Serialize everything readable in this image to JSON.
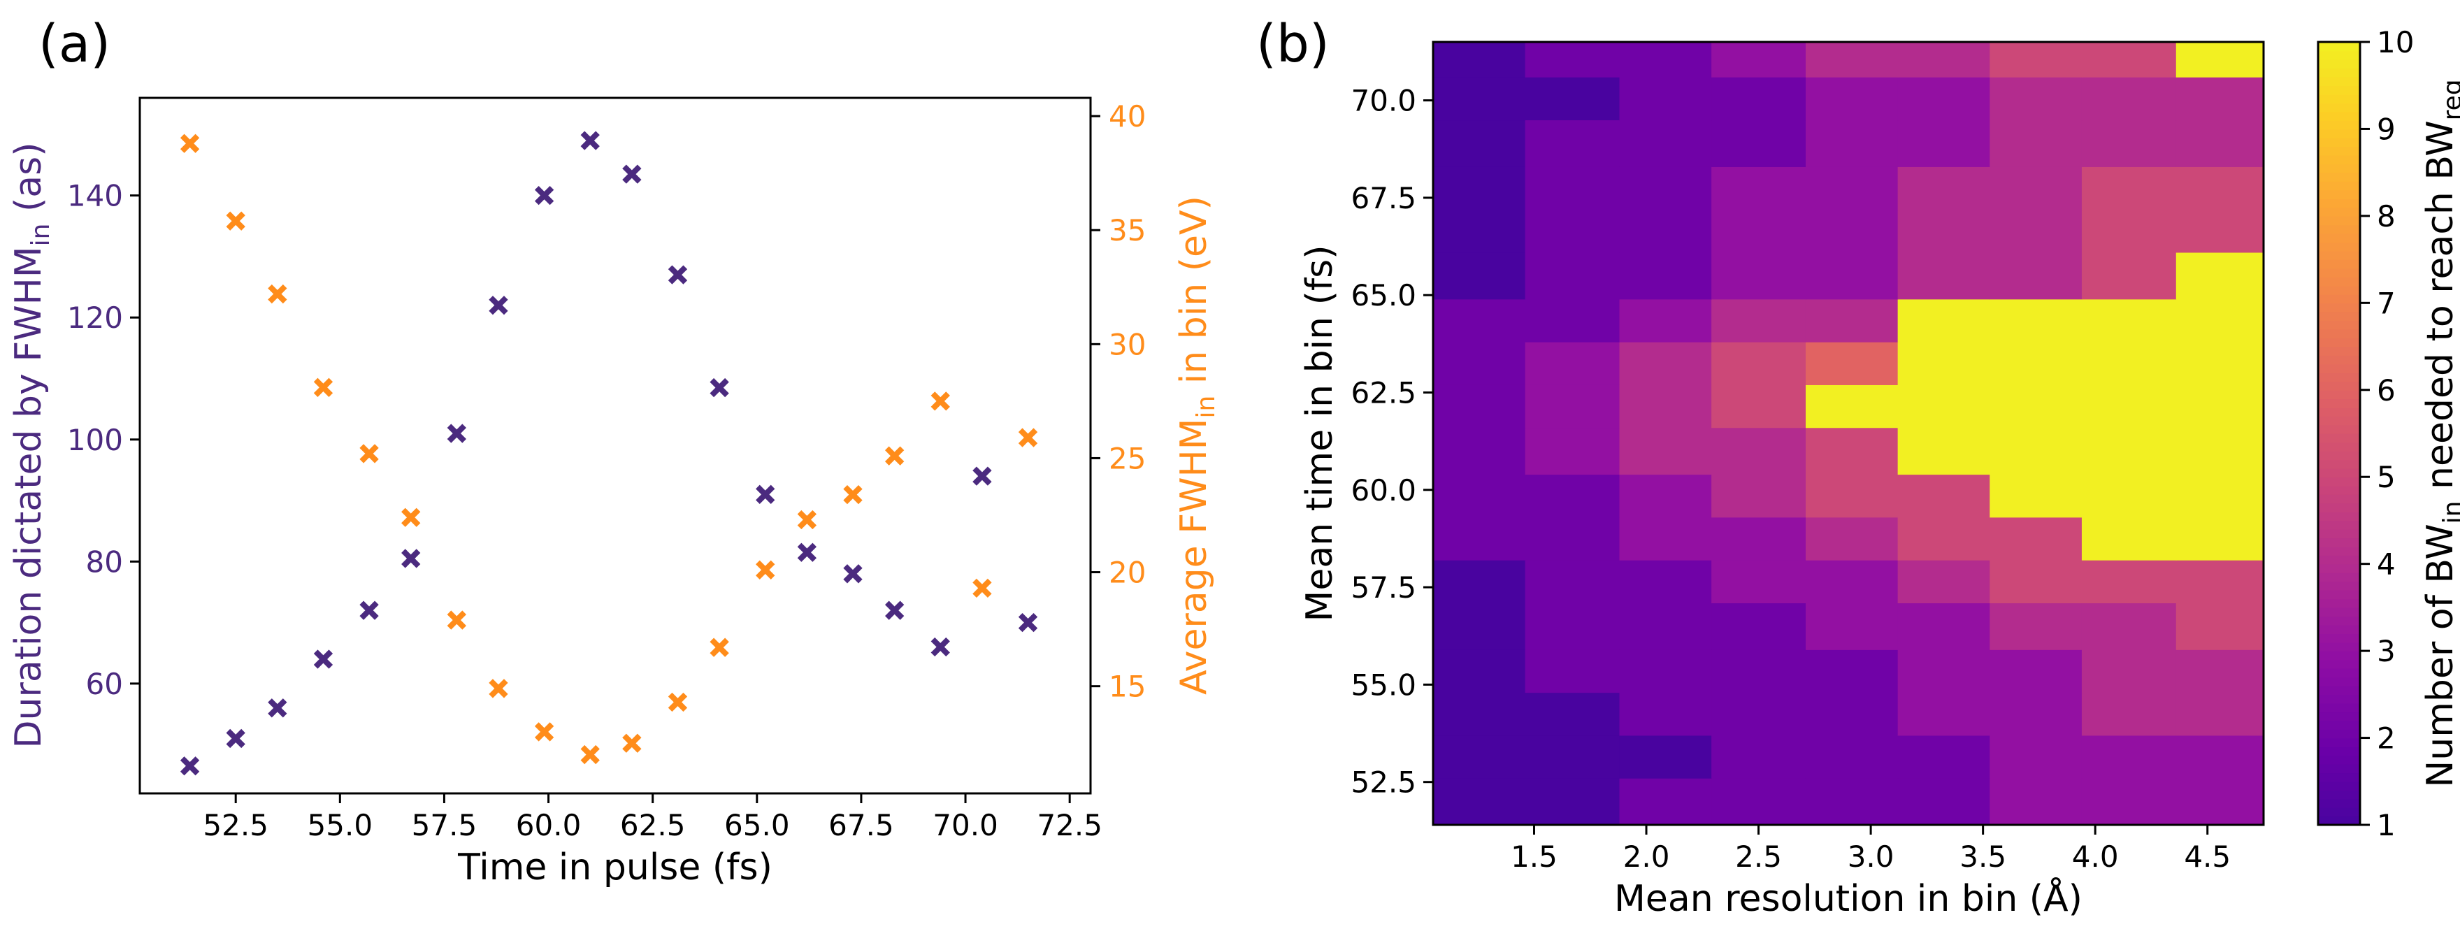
{
  "chart_data": [
    {
      "type": "scatter",
      "panel_label": "(a)",
      "title": "",
      "xlabel": "Time in pulse (fs)",
      "ylabel": {
        "main": "Duration dictated by FWHM",
        "sub": "in",
        "unit": " (as)"
      },
      "y2label": {
        "main": "Average FWHM",
        "sub": "in",
        "unit": " in bin (eV)"
      },
      "xlim": [
        50.2,
        73.0
      ],
      "ylim": [
        42,
        156
      ],
      "y2lim": [
        10.3,
        40.8
      ],
      "xticks": [
        52.5,
        55.0,
        57.5,
        60.0,
        62.5,
        65.0,
        67.5,
        70.0,
        72.5
      ],
      "xtick_labels": [
        "52.5",
        "55.0",
        "57.5",
        "60.0",
        "62.5",
        "65.0",
        "67.5",
        "70.0",
        "72.5"
      ],
      "yticks": [
        60,
        80,
        100,
        120,
        140
      ],
      "ytick_labels": [
        "60",
        "80",
        "100",
        "120",
        "140"
      ],
      "y2ticks": [
        15,
        20,
        25,
        30,
        35,
        40
      ],
      "y2tick_labels": [
        "15",
        "20",
        "25",
        "30",
        "35",
        "40"
      ],
      "series": [
        {
          "name": "Duration",
          "axis": "left",
          "color": "#4b2a7f",
          "marker": "x",
          "x": [
            51.4,
            52.5,
            53.5,
            54.6,
            55.7,
            56.7,
            57.8,
            58.8,
            59.9,
            61.0,
            62.0,
            63.1,
            64.1,
            65.2,
            66.2,
            67.3,
            68.3,
            69.4,
            70.4,
            71.5
          ],
          "y": [
            46.5,
            51,
            56,
            64,
            72,
            80.5,
            101,
            122,
            140,
            149,
            143.5,
            127,
            108.5,
            91,
            81.5,
            78,
            72,
            66,
            94,
            70
          ]
        },
        {
          "name": "Average FWHM",
          "axis": "right",
          "color": "#ff8c1a",
          "marker": "x",
          "x": [
            51.4,
            52.5,
            53.5,
            54.6,
            55.7,
            56.7,
            57.8,
            58.8,
            59.9,
            61.0,
            62.0,
            63.1,
            64.1,
            65.2,
            66.2,
            67.3,
            68.3,
            69.4,
            70.4,
            71.5
          ],
          "y": [
            38.8,
            35.4,
            32.2,
            28.1,
            25.2,
            22.4,
            17.9,
            14.9,
            13.0,
            12.0,
            12.5,
            14.3,
            16.7,
            20.1,
            22.3,
            23.4,
            25.1,
            27.5,
            19.3,
            25.9
          ]
        }
      ]
    },
    {
      "type": "heatmap",
      "panel_label": "(b)",
      "title": "",
      "xlabel": "Mean resolution in bin (Å)",
      "ylabel": "Mean time in bin (fs)",
      "xlim": [
        1.05,
        4.75
      ],
      "ylim": [
        51.4,
        71.5
      ],
      "x_edges": [
        1.05,
        1.46,
        1.88,
        2.29,
        2.71,
        3.12,
        3.53,
        3.94,
        4.36,
        4.75
      ],
      "y_edges": [
        51.4,
        52.6,
        53.7,
        54.8,
        55.9,
        57.1,
        58.2,
        59.3,
        60.4,
        61.6,
        62.7,
        63.8,
        64.9,
        66.1,
        67.2,
        68.3,
        69.5,
        70.6,
        71.5
      ],
      "xticks": [
        1.5,
        2.0,
        2.5,
        3.0,
        3.5,
        4.0,
        4.5
      ],
      "xtick_labels": [
        "1.5",
        "2.0",
        "2.5",
        "3.0",
        "3.5",
        "4.0",
        "4.5"
      ],
      "yticks": [
        52.5,
        55.0,
        57.5,
        60.0,
        62.5,
        65.0,
        67.5,
        70.0
      ],
      "ytick_labels": [
        "52.5",
        "55.0",
        "57.5",
        "60.0",
        "62.5",
        "65.0",
        "67.5",
        "70.0"
      ],
      "values_note": "rows ordered bottom (row 0) to top",
      "values": [
        [
          1,
          1,
          2,
          2,
          2,
          2,
          3,
          3,
          3
        ],
        [
          1,
          1,
          1,
          2,
          2,
          2,
          3,
          3,
          3
        ],
        [
          1,
          1,
          2,
          2,
          2,
          3,
          3,
          4,
          4
        ],
        [
          1,
          2,
          2,
          2,
          2,
          3,
          3,
          4,
          4
        ],
        [
          1,
          2,
          2,
          2,
          3,
          3,
          4,
          4,
          5
        ],
        [
          1,
          2,
          2,
          3,
          3,
          4,
          5,
          5,
          5
        ],
        [
          2,
          2,
          3,
          3,
          4,
          5,
          5,
          10,
          10
        ],
        [
          2,
          2,
          3,
          4,
          5,
          5,
          10,
          10,
          10
        ],
        [
          2,
          3,
          4,
          4,
          5,
          10,
          10,
          10,
          10
        ],
        [
          2,
          3,
          4,
          5,
          10,
          10,
          10,
          10,
          10
        ],
        [
          2,
          3,
          4,
          5,
          6,
          10,
          10,
          10,
          10
        ],
        [
          2,
          2,
          3,
          4,
          4,
          10,
          10,
          10,
          10
        ],
        [
          1,
          2,
          2,
          3,
          3,
          4,
          4,
          5,
          10
        ],
        [
          1,
          2,
          2,
          3,
          3,
          4,
          4,
          5,
          5
        ],
        [
          1,
          2,
          2,
          3,
          3,
          4,
          4,
          5,
          5
        ],
        [
          1,
          2,
          2,
          2,
          3,
          3,
          4,
          4,
          4
        ],
        [
          1,
          1,
          2,
          2,
          3,
          3,
          4,
          4,
          4
        ],
        [
          1,
          2,
          2,
          3,
          4,
          4,
          5,
          5,
          10
        ]
      ],
      "colorbar": {
        "min": 1,
        "max": 10,
        "ticks": [
          1,
          2,
          3,
          4,
          5,
          6,
          7,
          8,
          9,
          10
        ],
        "tick_labels": [
          "1",
          "2",
          "3",
          "4",
          "5",
          "6",
          "7",
          "8",
          "9",
          "10"
        ],
        "label": {
          "p1": "Number of BW",
          "s1": "in",
          "p2": " needed to reach BW",
          "s2": "req"
        },
        "colormap": "plasma"
      }
    }
  ]
}
